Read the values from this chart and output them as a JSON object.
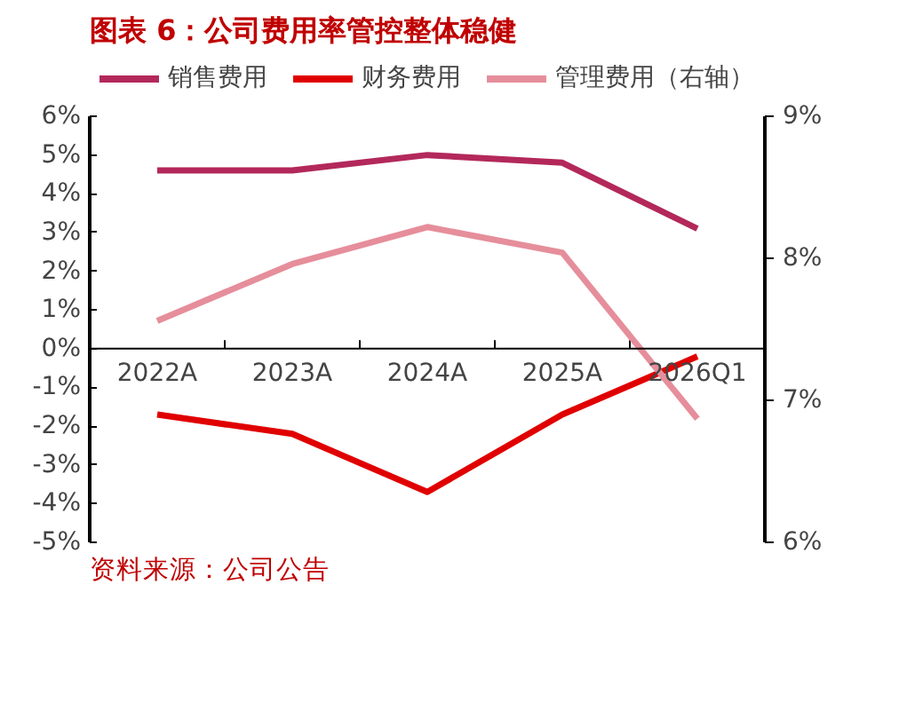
{
  "chart_data": {
    "type": "line",
    "title": "图表 6：公司费用率管控整体稳健",
    "categories": [
      "2022A",
      "2023A",
      "2024A",
      "2025A",
      "2026Q1"
    ],
    "series": [
      {
        "name": "销售费用",
        "color": "#b3285a",
        "values": [
          4.6,
          4.6,
          5.0,
          4.8,
          3.1
        ]
      },
      {
        "name": "财务费用",
        "color": "#e00000",
        "values": [
          -1.7,
          -2.2,
          -3.7,
          -1.7,
          -0.2
        ]
      },
      {
        "name": "管理费用（右轴）",
        "color": "#e68e9b",
        "values": [
          7.56,
          7.96,
          8.22,
          8.04,
          6.87
        ],
        "axis": "y2"
      }
    ],
    "ylim": [
      -5,
      6
    ],
    "yticks": [
      {
        "value": -5,
        "label": "-5%"
      },
      {
        "value": -4,
        "label": "-4%"
      },
      {
        "value": -3,
        "label": "-3%"
      },
      {
        "value": -2,
        "label": "-2%"
      },
      {
        "value": -1,
        "label": "-1%"
      },
      {
        "value": 0,
        "label": "0%"
      },
      {
        "value": 1,
        "label": "1%"
      },
      {
        "value": 2,
        "label": "2%"
      },
      {
        "value": 3,
        "label": "3%"
      },
      {
        "value": 4,
        "label": "4%"
      },
      {
        "value": 5,
        "label": "5%"
      },
      {
        "value": 6,
        "label": "6%"
      }
    ],
    "y2lim": [
      6,
      9
    ],
    "y2ticks": [
      {
        "value": 6,
        "label": "6%"
      },
      {
        "value": 7,
        "label": "7%"
      },
      {
        "value": 8,
        "label": "8%"
      },
      {
        "value": 9,
        "label": "9%"
      }
    ],
    "legend": "top",
    "grid": false,
    "marker": "none",
    "annotations": [
      "资料来源：公司公告"
    ]
  }
}
